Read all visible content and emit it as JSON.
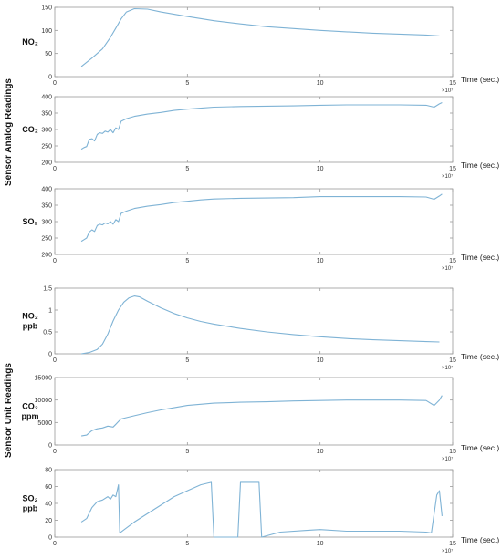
{
  "group_labels": [
    "Sensor Analog Readings",
    "Sensor Unit Readings"
  ],
  "chart_data": [
    {
      "type": "line",
      "title": "",
      "ylabel": "NO₂",
      "xlabel": "Time (sec.)",
      "x_multiplier": "×10⁷",
      "xlim": [
        0,
        15
      ],
      "ylim": [
        0,
        150
      ],
      "xticks": [
        "0",
        "5",
        "10",
        "15"
      ],
      "yticks": [
        "0",
        "50",
        "100",
        "150"
      ],
      "grid": false,
      "line_color": "#7fb3d5",
      "x": [
        1,
        1.4,
        1.8,
        2.1,
        2.3,
        2.5,
        2.7,
        3,
        3.5,
        4,
        5,
        6,
        7,
        8,
        9,
        10,
        11,
        12,
        13,
        14,
        14.5
      ],
      "values": [
        22,
        40,
        60,
        85,
        105,
        125,
        140,
        147,
        146,
        140,
        130,
        121,
        114,
        108,
        104,
        100,
        97,
        94,
        92,
        90,
        88
      ]
    },
    {
      "type": "line",
      "title": "",
      "ylabel": "CO₂",
      "xlabel": "Time (sec.)",
      "x_multiplier": "×10⁷",
      "xlim": [
        0,
        15
      ],
      "ylim": [
        200,
        400
      ],
      "xticks": [
        "0",
        "5",
        "10",
        "15"
      ],
      "yticks": [
        "200",
        "250",
        "300",
        "350",
        "400"
      ],
      "grid": false,
      "line_color": "#7fb3d5",
      "x": [
        1,
        1.1,
        1.2,
        1.3,
        1.4,
        1.5,
        1.6,
        1.7,
        1.8,
        1.9,
        2.0,
        2.1,
        2.2,
        2.3,
        2.4,
        2.5,
        2.7,
        3,
        3.5,
        4,
        4.5,
        5,
        5.5,
        6,
        7,
        8,
        9,
        10,
        11,
        12,
        13,
        14,
        14.3,
        14.5,
        14.6
      ],
      "values": [
        240,
        245,
        248,
        270,
        272,
        265,
        285,
        290,
        288,
        295,
        292,
        300,
        290,
        305,
        300,
        325,
        333,
        340,
        347,
        352,
        358,
        362,
        365,
        368,
        370,
        371,
        372,
        374,
        375,
        375,
        375,
        374,
        368,
        378,
        382
      ]
    },
    {
      "type": "line",
      "title": "",
      "ylabel": "SO₂",
      "xlabel": "Time (sec.)",
      "x_multiplier": "×10⁷",
      "xlim": [
        0,
        15
      ],
      "ylim": [
        200,
        400
      ],
      "xticks": [
        "0",
        "5",
        "10",
        "15"
      ],
      "yticks": [
        "200",
        "250",
        "300",
        "350",
        "400"
      ],
      "grid": false,
      "line_color": "#7fb3d5",
      "x": [
        1,
        1.1,
        1.2,
        1.3,
        1.4,
        1.5,
        1.6,
        1.7,
        1.8,
        1.9,
        2.0,
        2.1,
        2.2,
        2.3,
        2.4,
        2.5,
        2.7,
        3,
        3.5,
        4,
        4.5,
        5,
        5.5,
        6,
        7,
        8,
        9,
        10,
        11,
        12,
        13,
        14,
        14.3,
        14.5,
        14.6
      ],
      "values": [
        240,
        245,
        250,
        268,
        275,
        270,
        288,
        292,
        290,
        296,
        293,
        300,
        292,
        306,
        300,
        325,
        332,
        340,
        347,
        352,
        358,
        362,
        366,
        369,
        371,
        372,
        373,
        376,
        376,
        376,
        376,
        375,
        368,
        378,
        384
      ]
    },
    {
      "type": "line",
      "title": "",
      "ylabel": "NO₂ ppb",
      "xlabel": "Time (sec.)",
      "x_multiplier": "×10⁷",
      "xlim": [
        0,
        15
      ],
      "ylim": [
        0,
        1.5
      ],
      "xticks": [
        "0",
        "5",
        "10",
        "15"
      ],
      "yticks": [
        "0",
        "0.5",
        "1",
        "1.5"
      ],
      "grid": false,
      "line_color": "#7fb3d5",
      "x": [
        1,
        1.3,
        1.6,
        1.8,
        2.0,
        2.2,
        2.4,
        2.6,
        2.8,
        3,
        3.2,
        3.5,
        4,
        4.5,
        5,
        5.5,
        6,
        7,
        8,
        9,
        10,
        11,
        12,
        13,
        14,
        14.5
      ],
      "values": [
        0.0,
        0.03,
        0.1,
        0.22,
        0.45,
        0.75,
        1.0,
        1.18,
        1.28,
        1.32,
        1.3,
        1.2,
        1.05,
        0.92,
        0.82,
        0.74,
        0.68,
        0.58,
        0.5,
        0.44,
        0.39,
        0.35,
        0.32,
        0.3,
        0.28,
        0.27
      ]
    },
    {
      "type": "line",
      "title": "",
      "ylabel": "CO₂ ppm",
      "xlabel": "Time (sec.)",
      "x_multiplier": "×10⁷",
      "xlim": [
        0,
        15
      ],
      "ylim": [
        0,
        15000
      ],
      "xticks": [
        "0",
        "5",
        "10",
        "15"
      ],
      "yticks": [
        "0",
        "5000",
        "10000",
        "15000"
      ],
      "grid": false,
      "line_color": "#7fb3d5",
      "x": [
        1,
        1.2,
        1.4,
        1.6,
        1.8,
        2.0,
        2.2,
        2.3,
        2.4,
        2.5,
        3,
        3.5,
        4,
        4.5,
        5,
        6,
        7,
        8,
        9,
        10,
        11,
        12,
        13,
        14,
        14.3,
        14.5,
        14.6
      ],
      "values": [
        2000,
        2200,
        3200,
        3600,
        3800,
        4200,
        4000,
        4600,
        5200,
        5800,
        6500,
        7200,
        7800,
        8300,
        8800,
        9300,
        9500,
        9600,
        9800,
        9900,
        10000,
        10000,
        10000,
        9900,
        8800,
        10000,
        11000
      ]
    },
    {
      "type": "line",
      "title": "",
      "ylabel": "SO₂ ppb",
      "xlabel": "Time (sec.)",
      "x_multiplier": "×10⁷",
      "xlim": [
        0,
        15
      ],
      "ylim": [
        0,
        80
      ],
      "xticks": [
        "0",
        "5",
        "10",
        "15"
      ],
      "yticks": [
        "0",
        "20",
        "40",
        "60",
        "80"
      ],
      "grid": false,
      "line_color": "#7fb3d5",
      "x": [
        1,
        1.2,
        1.4,
        1.6,
        1.8,
        2.0,
        2.1,
        2.2,
        2.3,
        2.4,
        2.45,
        3,
        3.5,
        4,
        4.5,
        5,
        5.5,
        5.9,
        6.0,
        6.9,
        7.0,
        7.7,
        7.8,
        8.5,
        9.5,
        10,
        11,
        12,
        13,
        14,
        14.2,
        14.4,
        14.5,
        14.6
      ],
      "values": [
        18,
        22,
        35,
        42,
        44,
        48,
        45,
        50,
        48,
        62,
        5,
        18,
        28,
        38,
        48,
        55,
        62,
        65,
        0,
        0,
        65,
        65,
        0,
        6,
        8,
        9,
        7,
        7,
        7,
        6,
        5,
        50,
        55,
        25
      ]
    }
  ]
}
